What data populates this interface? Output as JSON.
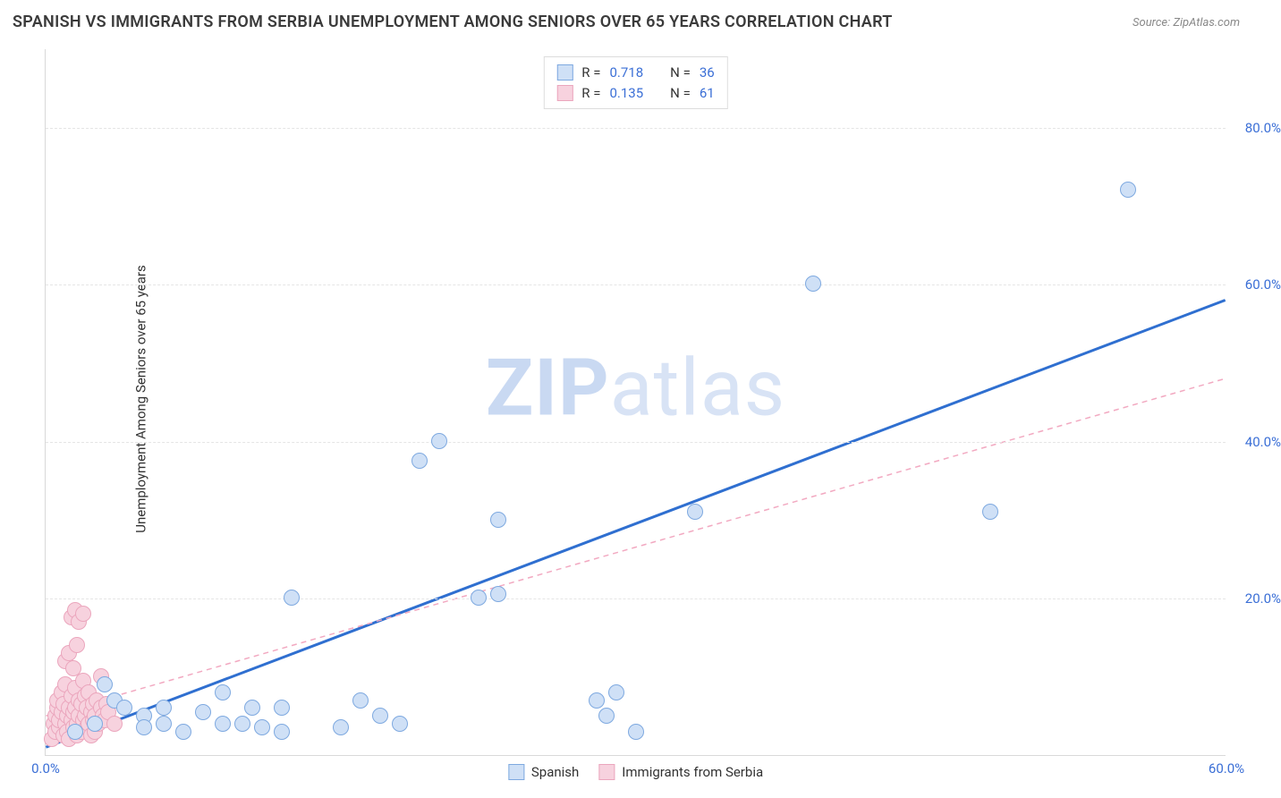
{
  "title": "SPANISH VS IMMIGRANTS FROM SERBIA UNEMPLOYMENT AMONG SENIORS OVER 65 YEARS CORRELATION CHART",
  "source_prefix": "Source: ",
  "source_name": "ZipAtlas.com",
  "yaxis_label": "Unemployment Among Seniors over 65 years",
  "watermark": {
    "bold": "ZIP",
    "rest": "atlas"
  },
  "chart": {
    "type": "scatter",
    "xlim": [
      0,
      60
    ],
    "ylim": [
      0,
      90
    ],
    "xtick_labels": [
      {
        "value": 0,
        "label": "0.0%"
      },
      {
        "value": 60,
        "label": "60.0%"
      }
    ],
    "ytick_labels": [
      {
        "value": 20,
        "label": "20.0%"
      },
      {
        "value": 40,
        "label": "40.0%"
      },
      {
        "value": 60,
        "label": "60.0%"
      },
      {
        "value": 80,
        "label": "80.0%"
      }
    ],
    "grid_y": [
      20,
      40,
      60,
      80
    ],
    "grid_color": "#e5e5e5",
    "background_color": "#ffffff",
    "axis_color": "#d9d9d9",
    "tick_font_color": "#3b6fd6",
    "marker_radius": 9,
    "series": [
      {
        "name": "Spanish",
        "fill": "#cfe0f6",
        "stroke": "#7ea9e0",
        "trend": {
          "x1": 0,
          "y1": 1,
          "x2": 60,
          "y2": 58,
          "stroke": "#2f6fd0",
          "width": 3,
          "dash": null
        },
        "stats": {
          "R": "0.718",
          "N": "36"
        },
        "points": [
          [
            1.5,
            3
          ],
          [
            2.5,
            4
          ],
          [
            3,
            9
          ],
          [
            3.5,
            7
          ],
          [
            4,
            6
          ],
          [
            5,
            5
          ],
          [
            5,
            3.5
          ],
          [
            6,
            6
          ],
          [
            6,
            4
          ],
          [
            7,
            3
          ],
          [
            8,
            5.5
          ],
          [
            9,
            4
          ],
          [
            9,
            8
          ],
          [
            10,
            4
          ],
          [
            10.5,
            6
          ],
          [
            11,
            3.5
          ],
          [
            12,
            6
          ],
          [
            12,
            3
          ],
          [
            12.5,
            20
          ],
          [
            15,
            3.5
          ],
          [
            16,
            7
          ],
          [
            17,
            5
          ],
          [
            18,
            4
          ],
          [
            19,
            37.5
          ],
          [
            20,
            40
          ],
          [
            22,
            20
          ],
          [
            23,
            20.5
          ],
          [
            23,
            30
          ],
          [
            28,
            7
          ],
          [
            28.5,
            5
          ],
          [
            29,
            8
          ],
          [
            30,
            3
          ],
          [
            33,
            31
          ],
          [
            39,
            60
          ],
          [
            48,
            31
          ],
          [
            55,
            72
          ]
        ]
      },
      {
        "name": "Immigrants from Serbia",
        "fill": "#f7d2de",
        "stroke": "#eba6bd",
        "trend": {
          "x1": 0,
          "y1": 5,
          "x2": 60,
          "y2": 48,
          "stroke": "#f2a9c1",
          "width": 1.5,
          "dash": "6 5"
        },
        "stats": {
          "R": "0.135",
          "N": "61"
        },
        "points": [
          [
            0.3,
            2
          ],
          [
            0.4,
            4
          ],
          [
            0.5,
            3
          ],
          [
            0.5,
            5
          ],
          [
            0.6,
            6
          ],
          [
            0.6,
            7
          ],
          [
            0.7,
            3.5
          ],
          [
            0.7,
            4.5
          ],
          [
            0.8,
            5.5
          ],
          [
            0.8,
            8
          ],
          [
            0.9,
            2.5
          ],
          [
            0.9,
            6.5
          ],
          [
            1.0,
            4
          ],
          [
            1.0,
            9
          ],
          [
            1.1,
            3
          ],
          [
            1.1,
            5
          ],
          [
            1.2,
            6
          ],
          [
            1.2,
            2
          ],
          [
            1.3,
            4.5
          ],
          [
            1.3,
            7.5
          ],
          [
            1.4,
            5.5
          ],
          [
            1.4,
            3.5
          ],
          [
            1.5,
            6
          ],
          [
            1.5,
            8.5
          ],
          [
            1.6,
            4
          ],
          [
            1.6,
            2.5
          ],
          [
            1.7,
            5
          ],
          [
            1.7,
            7
          ],
          [
            1.8,
            6.5
          ],
          [
            1.8,
            3
          ],
          [
            1.9,
            4.5
          ],
          [
            1.9,
            9.5
          ],
          [
            2.0,
            5
          ],
          [
            2.0,
            7.5
          ],
          [
            2.1,
            3.5
          ],
          [
            2.1,
            6
          ],
          [
            2.2,
            4
          ],
          [
            2.2,
            8
          ],
          [
            2.3,
            5.5
          ],
          [
            2.3,
            2.5
          ],
          [
            2.4,
            6.5
          ],
          [
            2.4,
            4.5
          ],
          [
            2.5,
            5
          ],
          [
            2.5,
            3
          ],
          [
            2.6,
            7
          ],
          [
            2.7,
            4
          ],
          [
            2.8,
            6
          ],
          [
            2.9,
            5
          ],
          [
            3.0,
            4.5
          ],
          [
            3.1,
            6.5
          ],
          [
            1.0,
            12
          ],
          [
            1.2,
            13
          ],
          [
            1.4,
            11
          ],
          [
            1.6,
            14
          ],
          [
            1.3,
            17.5
          ],
          [
            1.5,
            18.5
          ],
          [
            1.7,
            17
          ],
          [
            1.9,
            18
          ],
          [
            2.8,
            10
          ],
          [
            3.2,
            5.5
          ],
          [
            3.5,
            4
          ]
        ]
      }
    ],
    "legend_bottom": [
      {
        "label": "Spanish",
        "fill": "#cfe0f6",
        "stroke": "#7ea9e0"
      },
      {
        "label": "Immigrants from Serbia",
        "fill": "#f7d2de",
        "stroke": "#eba6bd"
      }
    ],
    "legend_labels": {
      "R": "R =",
      "N": "N ="
    }
  }
}
